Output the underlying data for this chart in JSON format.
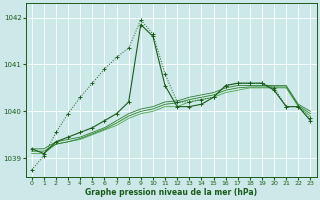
{
  "title": "Graphe pression niveau de la mer (hPa)",
  "bg": "#cce8e8",
  "grid_color": "#ffffff",
  "dark_green": "#1a5c1a",
  "mid_green": "#2e7d2e",
  "light_green": "#4aaa4a",
  "xlim": [
    -0.5,
    23.5
  ],
  "ylim": [
    1038.6,
    1042.3
  ],
  "yticks": [
    1039,
    1040,
    1041,
    1042
  ],
  "xticks": [
    0,
    1,
    2,
    3,
    4,
    5,
    6,
    7,
    8,
    9,
    10,
    11,
    12,
    13,
    14,
    15,
    16,
    17,
    18,
    19,
    20,
    21,
    22,
    23
  ],
  "spike_y": [
    1038.75,
    1039.05,
    1039.55,
    1039.95,
    1040.3,
    1040.6,
    1040.9,
    1041.15,
    1041.35,
    1041.95,
    1041.65,
    1040.8,
    1040.2,
    1040.2,
    1040.25,
    1040.3,
    1040.55,
    1040.6,
    1040.6,
    1040.6,
    1040.5,
    1040.1,
    1040.1,
    1039.85
  ],
  "main_y": [
    1039.2,
    1039.1,
    1039.35,
    1039.45,
    1039.55,
    1039.65,
    1039.8,
    1039.95,
    1040.2,
    1041.85,
    1041.6,
    1040.55,
    1040.1,
    1040.1,
    1040.15,
    1040.3,
    1040.55,
    1040.6,
    1040.6,
    1040.6,
    1040.45,
    1040.1,
    1040.1,
    1039.8
  ],
  "smooth1_y": [
    1039.1,
    1039.1,
    1039.3,
    1039.35,
    1039.4,
    1039.5,
    1039.6,
    1039.7,
    1039.85,
    1039.95,
    1040.0,
    1040.1,
    1040.1,
    1040.2,
    1040.25,
    1040.3,
    1040.4,
    1040.45,
    1040.5,
    1040.5,
    1040.5,
    1040.5,
    1040.1,
    1039.9
  ],
  "smooth2_y": [
    1039.15,
    1039.15,
    1039.3,
    1039.35,
    1039.42,
    1039.52,
    1039.62,
    1039.75,
    1039.9,
    1040.0,
    1040.05,
    1040.15,
    1040.18,
    1040.25,
    1040.3,
    1040.35,
    1040.45,
    1040.5,
    1040.52,
    1040.52,
    1040.52,
    1040.52,
    1040.12,
    1039.95
  ],
  "smooth3_y": [
    1039.2,
    1039.2,
    1039.35,
    1039.4,
    1039.45,
    1039.55,
    1039.65,
    1039.8,
    1039.95,
    1040.05,
    1040.1,
    1040.2,
    1040.22,
    1040.3,
    1040.35,
    1040.4,
    1040.5,
    1040.55,
    1040.55,
    1040.55,
    1040.55,
    1040.55,
    1040.15,
    1040.0
  ]
}
